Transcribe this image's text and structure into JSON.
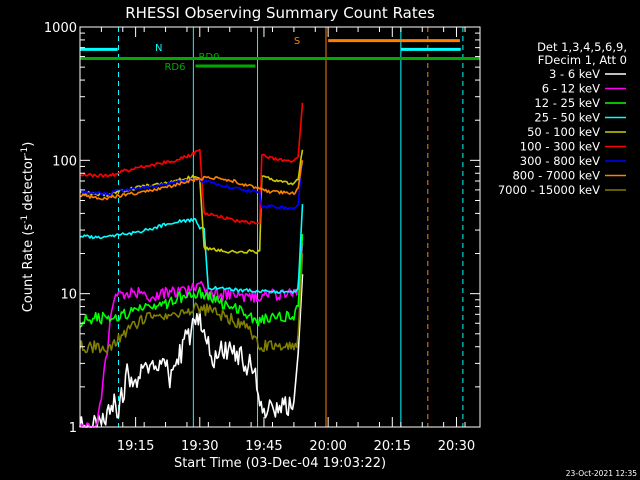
{
  "chart_data": {
    "type": "line",
    "title": "RHESSI Observing Summary Count Rates",
    "xlabel": "Start Time (03-Dec-04 19:03:22)",
    "ylabel_parts": [
      "Count Rate (s",
      "-1",
      " detector",
      "-1",
      ")"
    ],
    "ylim": [
      1,
      1000
    ],
    "yscale": "log",
    "xlim_min": [
      5,
      48
    ],
    "y_ticks": [
      {
        "v": 1,
        "label": "1"
      },
      {
        "v": 10,
        "label": "10"
      },
      {
        "v": 100,
        "label": "100"
      },
      {
        "v": 1000,
        "label": "1000"
      }
    ],
    "x_ticks": [
      {
        "m": 18,
        "label": "19:15"
      },
      {
        "m": 33,
        "label": "19:30"
      },
      {
        "m": 48,
        "label": "19:45"
      },
      {
        "m": 63,
        "label": "20:00"
      },
      {
        "m": 78,
        "label": "20:15"
      },
      {
        "m": 93,
        "label": "20:30"
      }
    ],
    "legend_header": [
      "Det 1,3,4,5,6,9,",
      "FDecim 1, Att 0"
    ],
    "series": [
      {
        "name": "3 - 6 keV",
        "color": "#ffffff",
        "points": [
          [
            5,
            1
          ],
          [
            10,
            1
          ],
          [
            13,
            1.6
          ],
          [
            14,
            1.3
          ],
          [
            16,
            2.5
          ],
          [
            18,
            2.2
          ],
          [
            20,
            2.7
          ],
          [
            22,
            3.3
          ],
          [
            24,
            2.6
          ],
          [
            25,
            3.0
          ],
          [
            26,
            2.3
          ],
          [
            28,
            3.3
          ],
          [
            30,
            4.6
          ],
          [
            32,
            6.0
          ],
          [
            33,
            6.2
          ],
          [
            34,
            5.0
          ],
          [
            36,
            3.2
          ],
          [
            38,
            3.6
          ],
          [
            40,
            3.8
          ],
          [
            42,
            3.4
          ],
          [
            44,
            3.0
          ],
          [
            46,
            2.6
          ],
          [
            47,
            1.6
          ],
          [
            49,
            1.3
          ],
          [
            51,
            1.4
          ],
          [
            53,
            1.4
          ],
          [
            55,
            1.6
          ],
          [
            56,
            4.0
          ],
          [
            57,
            14
          ]
        ]
      },
      {
        "name": "6 - 12 keV",
        "color": "#ff00ff",
        "points": [
          [
            5,
            1
          ],
          [
            9,
            1
          ],
          [
            13,
            9.8
          ],
          [
            18,
            10.1
          ],
          [
            22,
            9.4
          ],
          [
            26,
            10.3
          ],
          [
            29,
            10.2
          ],
          [
            31,
            10.4
          ],
          [
            32,
            11.4
          ],
          [
            33,
            12.5
          ],
          [
            34,
            10.5
          ],
          [
            36,
            9.8
          ],
          [
            38,
            9.7
          ],
          [
            40,
            9.8
          ],
          [
            42,
            9.6
          ],
          [
            44,
            9.2
          ],
          [
            47,
            9.7
          ],
          [
            50,
            9.9
          ],
          [
            53,
            9.8
          ],
          [
            55,
            9.8
          ],
          [
            56,
            11
          ],
          [
            57,
            24
          ]
        ]
      },
      {
        "name": "12 - 25 keV",
        "color": "#00ff00",
        "points": [
          [
            5,
            6.2
          ],
          [
            7,
            6.4
          ],
          [
            9,
            6.6
          ],
          [
            11,
            6.5
          ],
          [
            13,
            6.3
          ],
          [
            15,
            6.8
          ],
          [
            17,
            7.4
          ],
          [
            19,
            7.9
          ],
          [
            21,
            8.2
          ],
          [
            23,
            7.8
          ],
          [
            25,
            8.3
          ],
          [
            27,
            9.0
          ],
          [
            29,
            9.5
          ],
          [
            31,
            9.8
          ],
          [
            33,
            10.2
          ],
          [
            35,
            9.6
          ],
          [
            37,
            9.0
          ],
          [
            39,
            8.4
          ],
          [
            41,
            8.0
          ],
          [
            43,
            7.4
          ],
          [
            45,
            6.6
          ],
          [
            47,
            6.2
          ],
          [
            49,
            6.5
          ],
          [
            51,
            6.8
          ],
          [
            53,
            6.6
          ],
          [
            55,
            6.8
          ],
          [
            56,
            8.0
          ],
          [
            57,
            28
          ]
        ]
      },
      {
        "name": "25 - 50 keV",
        "color": "#00ffff",
        "points": [
          [
            5,
            27
          ],
          [
            9,
            26.5
          ],
          [
            13,
            27.5
          ],
          [
            16,
            28
          ],
          [
            19,
            29
          ],
          [
            22,
            31
          ],
          [
            25,
            33
          ],
          [
            27,
            34.5
          ],
          [
            29,
            35
          ],
          [
            32,
            36
          ],
          [
            33,
            31.5
          ],
          [
            34,
            30
          ],
          [
            35,
            11
          ],
          [
            37,
            11
          ],
          [
            39,
            11
          ],
          [
            42,
            10.6
          ],
          [
            45,
            10.6
          ],
          [
            47,
            10.5
          ],
          [
            50,
            10.4
          ],
          [
            53,
            10.2
          ],
          [
            55,
            10.3
          ],
          [
            56,
            10.8
          ],
          [
            57,
            47
          ]
        ]
      },
      {
        "name": "50 - 100 keV",
        "color": "#cccc00",
        "points": [
          [
            5,
            58
          ],
          [
            8,
            56
          ],
          [
            11,
            55
          ],
          [
            14,
            58
          ],
          [
            17,
            61
          ],
          [
            20,
            64
          ],
          [
            23,
            66
          ],
          [
            26,
            69
          ],
          [
            29,
            72
          ],
          [
            32,
            76
          ],
          [
            33,
            73
          ],
          [
            34,
            22
          ],
          [
            38,
            21
          ],
          [
            42,
            20.5
          ],
          [
            45,
            20.8
          ],
          [
            47,
            20.5
          ],
          [
            47.5,
            76
          ],
          [
            50,
            71
          ],
          [
            53,
            68
          ],
          [
            55,
            67
          ],
          [
            56,
            72
          ],
          [
            57,
            120
          ]
        ]
      },
      {
        "name": "100 - 300 keV",
        "color": "#ff0000",
        "points": [
          [
            5,
            79
          ],
          [
            8,
            77
          ],
          [
            11,
            77
          ],
          [
            13,
            78
          ],
          [
            15,
            83
          ],
          [
            18,
            87
          ],
          [
            21,
            91
          ],
          [
            24,
            95
          ],
          [
            27,
            100
          ],
          [
            30,
            107
          ],
          [
            32,
            115
          ],
          [
            33,
            120
          ],
          [
            34,
            40
          ],
          [
            37,
            38.5
          ],
          [
            40,
            36
          ],
          [
            43,
            34.5
          ],
          [
            45,
            34
          ],
          [
            47,
            34
          ],
          [
            47.5,
            109
          ],
          [
            50,
            104
          ],
          [
            53,
            98
          ],
          [
            55,
            97
          ],
          [
            56,
            110
          ],
          [
            57,
            270
          ]
        ]
      },
      {
        "name": "300 - 800 keV",
        "color": "#0000ff",
        "points": [
          [
            5,
            59
          ],
          [
            8,
            57
          ],
          [
            11,
            56
          ],
          [
            14,
            59
          ],
          [
            17,
            61
          ],
          [
            20,
            63
          ],
          [
            23,
            64
          ],
          [
            26,
            67
          ],
          [
            29,
            70
          ],
          [
            32,
            72
          ],
          [
            34,
            70
          ],
          [
            37,
            66
          ],
          [
            40,
            63
          ],
          [
            43,
            60
          ],
          [
            45,
            59
          ],
          [
            47,
            57
          ],
          [
            47.5,
            45
          ],
          [
            50,
            45
          ],
          [
            53,
            44
          ],
          [
            55,
            44
          ],
          [
            56,
            47
          ],
          [
            57,
            100
          ]
        ]
      },
      {
        "name": "800 - 7000 keV",
        "color": "#ff8000",
        "points": [
          [
            5,
            55
          ],
          [
            8,
            53
          ],
          [
            11,
            52
          ],
          [
            14,
            54
          ],
          [
            17,
            56
          ],
          [
            20,
            58
          ],
          [
            23,
            61
          ],
          [
            26,
            64
          ],
          [
            29,
            68
          ],
          [
            32,
            72
          ],
          [
            35,
            75
          ],
          [
            38,
            73
          ],
          [
            41,
            70
          ],
          [
            44,
            65
          ],
          [
            46,
            62
          ],
          [
            47.5,
            60
          ],
          [
            50,
            58
          ],
          [
            53,
            57
          ],
          [
            55,
            56
          ],
          [
            56,
            62
          ],
          [
            57,
            100
          ]
        ]
      },
      {
        "name": "7000 - 15000 keV",
        "color": "#7f7f00",
        "points": [
          [
            5,
            4.0
          ],
          [
            8,
            4.0
          ],
          [
            11,
            3.8
          ],
          [
            13,
            4.2
          ],
          [
            15,
            5.0
          ],
          [
            17,
            5.6
          ],
          [
            19,
            6.2
          ],
          [
            21,
            6.8
          ],
          [
            23,
            6.4
          ],
          [
            25,
            6.6
          ],
          [
            27,
            7.0
          ],
          [
            29,
            7.4
          ],
          [
            31,
            7.7
          ],
          [
            33,
            7.8
          ],
          [
            35,
            7.5
          ],
          [
            37,
            7.0
          ],
          [
            39,
            6.8
          ],
          [
            41,
            6.2
          ],
          [
            43,
            5.8
          ],
          [
            45,
            5.2
          ],
          [
            47,
            4.2
          ],
          [
            49,
            4.0
          ],
          [
            51,
            4.0
          ],
          [
            53,
            4.0
          ],
          [
            55,
            4.0
          ],
          [
            56,
            4.5
          ],
          [
            57,
            20
          ]
        ]
      }
    ],
    "bars": [
      {
        "name": "night",
        "label": "N",
        "color": "#00ffff",
        "y": 680,
        "segments": [
          [
            5,
            13.8
          ],
          [
            80,
            94
          ]
        ]
      },
      {
        "name": "saa",
        "label": "S",
        "color": "#ff8000",
        "y": 790,
        "segments": [
          [
            63,
            93.8
          ]
        ]
      },
      {
        "name": "rd0",
        "label": "RD0",
        "color": "#00aa00",
        "y": 580,
        "segments": [
          [
            5,
            98.5
          ]
        ]
      },
      {
        "name": "rd6",
        "label": "RD6",
        "color": "#00aa00",
        "y": 510,
        "segments": [
          [
            32,
            46
          ]
        ]
      }
    ],
    "vlines": [
      {
        "m": 5,
        "color": "#00ffff",
        "dashed": false
      },
      {
        "m": 14,
        "color": "#00ffff",
        "dashed": true
      },
      {
        "m": 31.5,
        "color": "#00ffff",
        "dashed": false
      },
      {
        "m": 46.5,
        "color": "#00ffff",
        "dashed": false
      },
      {
        "m": 62.5,
        "color": "#ff8000",
        "dashed": false
      },
      {
        "m": 80,
        "color": "#00ffff",
        "dashed": false
      },
      {
        "m": 86.3,
        "color": "#ff8000",
        "dashed": true
      },
      {
        "m": 94.5,
        "color": "#00ffff",
        "dashed": true
      }
    ]
  },
  "footer": {
    "timestamp": "23-Oct-2021 12:35"
  }
}
